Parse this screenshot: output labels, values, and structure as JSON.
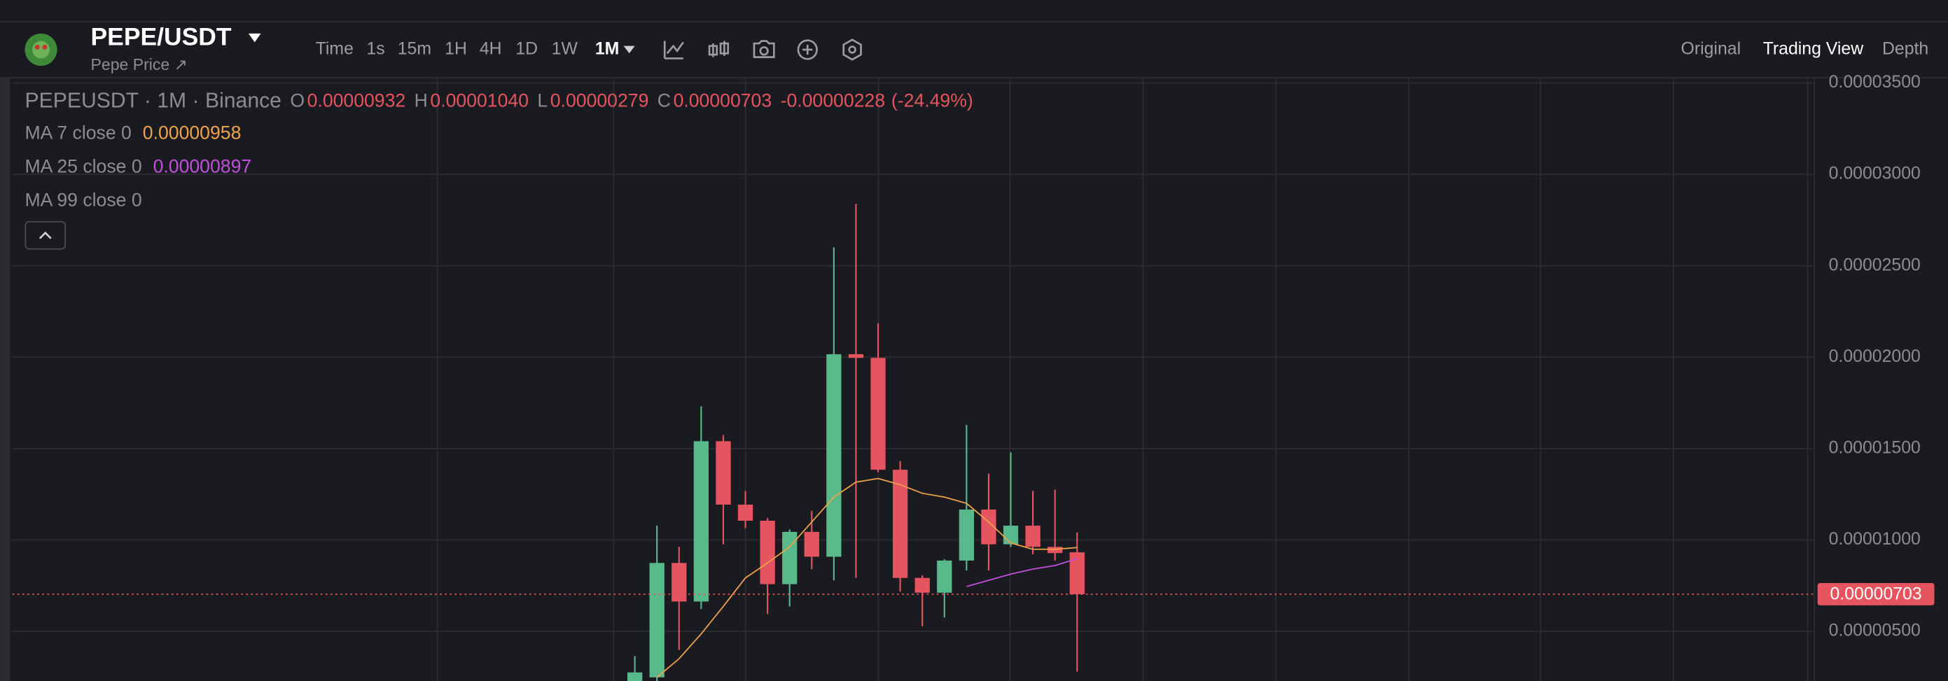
{
  "header": {
    "pair": "PEPE/USDT",
    "subtitle": "Pepe Price ↗"
  },
  "toolbar": {
    "intervals": [
      {
        "label": "Time"
      },
      {
        "label": "1s"
      },
      {
        "label": "15m"
      },
      {
        "label": "1H"
      },
      {
        "label": "4H"
      },
      {
        "label": "1D"
      },
      {
        "label": "1W"
      },
      {
        "label": "1M",
        "selected": true
      }
    ]
  },
  "views": [
    {
      "label": "Original"
    },
    {
      "label": "Trading View",
      "selected": true
    },
    {
      "label": "Depth"
    }
  ],
  "chart_data": {
    "type": "candlestick",
    "symbol": "PEPEUSDT · 1M · Binance",
    "legend": {
      "ohlc": [
        {
          "key": "O",
          "value": "0.00000932"
        },
        {
          "key": "H",
          "value": "0.00001040"
        },
        {
          "key": "L",
          "value": "0.00000279"
        },
        {
          "key": "C",
          "value": "0.00000703"
        }
      ],
      "change": "-0.00000228",
      "change_pct": "(-24.49%)"
    },
    "categories": [
      null,
      null,
      null,
      null,
      null,
      null,
      null,
      null,
      null,
      null,
      null,
      null,
      null,
      null,
      null,
      null,
      null,
      null,
      null,
      null,
      null
    ],
    "open": [
      2.1e-06,
      2.48e-06,
      8.74e-06,
      6.63e-06,
      1.54e-05,
      1.193e-05,
      1.105e-05,
      7.58e-06,
      1.044e-05,
      9.08e-06,
      2.016e-05,
      1.996e-05,
      1.384e-05,
      7.92e-06,
      7.11e-06,
      8.87e-06,
      1.166e-05,
      9.76e-06,
      1.078e-05,
      9.62e-06,
      9.32e-06
    ],
    "high": [
      3.64e-06,
      1.078e-05,
      9.62e-06,
      1.731e-05,
      1.574e-05,
      1.268e-05,
      1.119e-05,
      1.057e-05,
      1.159e-05,
      2.601e-05,
      2.839e-05,
      2.186e-05,
      1.431e-05,
      8.06e-06,
      8.94e-06,
      1.629e-05,
      1.363e-05,
      1.479e-05,
      1.268e-05,
      1.275e-05,
      1.04e-05
    ],
    "low": [
      1.8e-06,
      2.1e-06,
      3.98e-06,
      6.22e-06,
      9.76e-06,
      1.064e-05,
      5.95e-06,
      6.36e-06,
      8.4e-06,
      7.79e-06,
      7.92e-06,
      1.37e-05,
      7.17e-06,
      5.27e-06,
      5.75e-06,
      8.33e-06,
      8.33e-06,
      9.62e-06,
      9.21e-06,
      8.87e-06,
      2.79e-06
    ],
    "close": [
      2.75e-06,
      8.74e-06,
      6.63e-06,
      1.54e-05,
      1.193e-05,
      1.105e-05,
      7.58e-06,
      1.044e-05,
      9.08e-06,
      2.016e-05,
      1.996e-05,
      1.384e-05,
      7.92e-06,
      7.11e-06,
      8.87e-06,
      1.166e-05,
      9.76e-06,
      1.078e-05,
      9.62e-06,
      9.28e-06,
      7.03e-06
    ],
    "up_color": "#58b98a",
    "down_color": "#e5545f",
    "overlays": [
      {
        "name": "MA 7 close 0",
        "color": "#f0a24a",
        "value_label": "0.00000958",
        "values": [
          null,
          2.48e-06,
          3.5e-06,
          4.86e-06,
          6.36e-06,
          7.92e-06,
          8.74e-06,
          9.62e-06,
          1.098e-05,
          1.234e-05,
          1.316e-05,
          1.336e-05,
          1.302e-05,
          1.255e-05,
          1.234e-05,
          1.2e-05,
          1.098e-05,
          9.83e-06,
          9.49e-06,
          9.49e-06,
          9.58e-06
        ]
      },
      {
        "name": "MA 25 close 0",
        "color": "#c24fdc",
        "value_label": "0.00000897",
        "values": [
          null,
          null,
          null,
          null,
          null,
          null,
          null,
          null,
          null,
          null,
          null,
          null,
          null,
          null,
          null,
          7.45e-06,
          7.79e-06,
          8.13e-06,
          8.4e-06,
          8.6e-06,
          8.97e-06
        ]
      },
      {
        "name": "MA 99 close 0",
        "color": "#8a8d93"
      }
    ],
    "last_price": {
      "value": 7.03e-06,
      "label": "0.00000703"
    },
    "ylim": [
      2.28e-06,
      3.526e-05
    ],
    "yticks": [
      {
        "value": 5e-06,
        "label": "0.00000500"
      },
      {
        "value": 1e-05,
        "label": "0.00001000"
      },
      {
        "value": 1.5e-05,
        "label": "0.00001500"
      },
      {
        "value": 2e-05,
        "label": "0.00002000"
      },
      {
        "value": 2.5e-05,
        "label": "0.00002500"
      },
      {
        "value": 3e-05,
        "label": "0.00003000"
      },
      {
        "value": 3.5e-05,
        "label": "0.00003500"
      }
    ],
    "grid": true
  }
}
